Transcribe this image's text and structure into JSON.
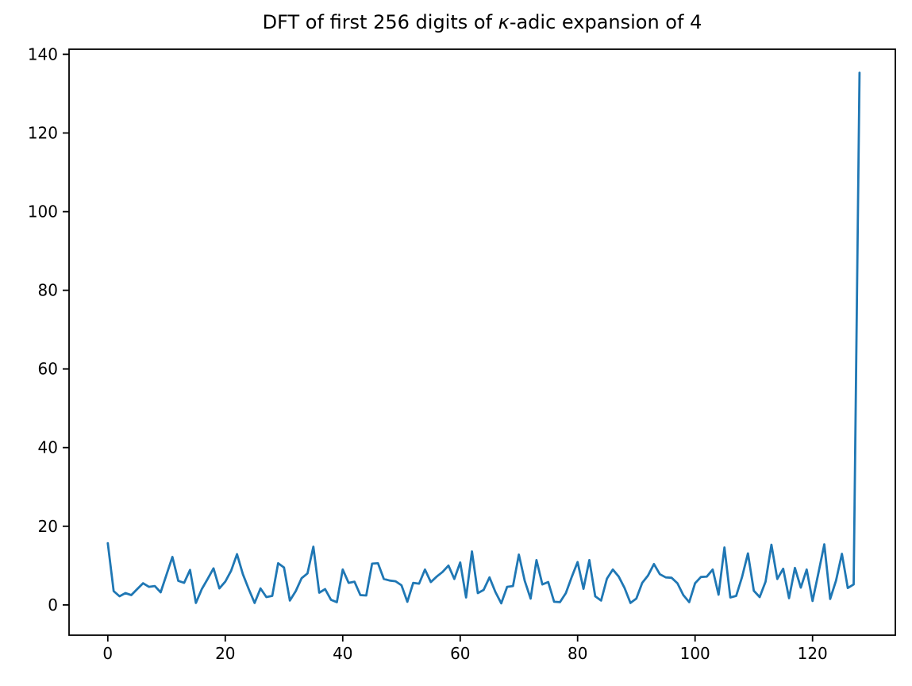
{
  "figure": {
    "background": "#ffffff"
  },
  "title": {
    "prefix": "DFT of first 256 digits of ",
    "kappa": "κ",
    "suffix": "-adic expansion of 4"
  },
  "chart_data": {
    "type": "line",
    "title": "DFT of first 256 digits of κ-adic expansion of 4",
    "xlabel": "",
    "ylabel": "",
    "legend": null,
    "grid": false,
    "line_color": "#1f77b4",
    "axis_color": "#000000",
    "x_start": 0,
    "x_step": 1,
    "xlim": [
      -6.6,
      134.1
    ],
    "ylim": [
      -7.7,
      141.3
    ],
    "xticks": [
      0,
      20,
      40,
      60,
      80,
      100,
      120
    ],
    "yticks": [
      0,
      20,
      40,
      60,
      80,
      100,
      120,
      140
    ],
    "values": [
      15.7,
      3.5,
      2.2,
      3.0,
      2.5,
      4.0,
      5.5,
      4.6,
      4.8,
      3.2,
      7.7,
      12.2,
      6.1,
      5.6,
      8.9,
      0.5,
      4.0,
      6.6,
      9.3,
      4.2,
      5.9,
      8.7,
      12.9,
      7.8,
      4.0,
      0.5,
      4.2,
      2.0,
      2.3,
      10.6,
      9.5,
      1.1,
      3.5,
      6.8,
      8.0,
      14.8,
      3.1,
      4.0,
      1.3,
      0.7,
      9.0,
      5.6,
      5.9,
      2.5,
      2.4,
      10.5,
      10.6,
      6.6,
      6.2,
      6.0,
      5.0,
      0.8,
      5.6,
      5.4,
      9.0,
      5.8,
      7.2,
      8.4,
      10.0,
      6.6,
      10.8,
      1.9,
      13.6,
      3.0,
      3.8,
      7.0,
      3.3,
      0.4,
      4.6,
      4.8,
      12.8,
      6.1,
      1.6,
      11.4,
      5.2,
      5.8,
      0.8,
      0.7,
      3.0,
      7.1,
      10.9,
      4.1,
      11.4,
      2.2,
      1.1,
      6.7,
      9.0,
      7.2,
      4.3,
      0.5,
      1.6,
      5.6,
      7.5,
      10.4,
      7.8,
      7.0,
      6.9,
      5.5,
      2.5,
      0.7,
      5.5,
      7.1,
      7.2,
      9.0,
      2.6,
      14.6,
      1.9,
      2.3,
      7.1,
      13.1,
      3.6,
      2.0,
      5.9,
      15.3,
      6.6,
      9.2,
      1.7,
      9.4,
      4.4,
      9.0,
      1.0,
      8.1,
      15.4,
      1.5,
      6.2,
      13.0,
      4.3,
      5.2,
      135.3
    ]
  }
}
